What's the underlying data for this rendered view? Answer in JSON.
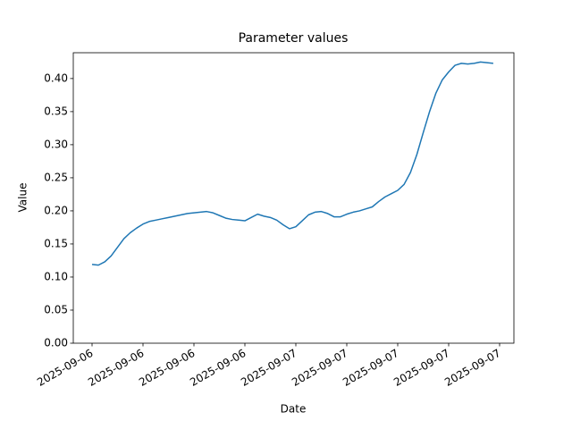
{
  "chart_data": {
    "type": "line",
    "title": "Parameter values",
    "x_label": "Date",
    "y_label": "Value",
    "categories": [
      "2025-09-06",
      null,
      null,
      null,
      null,
      null,
      null,
      null,
      "2025-09-06",
      null,
      null,
      null,
      null,
      null,
      null,
      null,
      "2025-09-06",
      null,
      null,
      null,
      null,
      null,
      null,
      null,
      "2025-09-06",
      null,
      null,
      null,
      null,
      null,
      null,
      null,
      "2025-09-07",
      null,
      null,
      null,
      null,
      null,
      null,
      null,
      "2025-09-07",
      null,
      null,
      null,
      null,
      null,
      null,
      null,
      "2025-09-07",
      null,
      null,
      null,
      null,
      null,
      null,
      null,
      "2025-09-07",
      null,
      null,
      null,
      null,
      null,
      null,
      null,
      "2025-09-07"
    ],
    "values": [
      0.119,
      0.118,
      0.123,
      0.132,
      0.145,
      0.158,
      0.167,
      0.174,
      0.18,
      0.184,
      0.186,
      0.188,
      0.19,
      0.192,
      0.194,
      0.196,
      0.197,
      0.198,
      0.199,
      0.197,
      0.193,
      0.189,
      0.187,
      0.186,
      0.185,
      0.19,
      0.195,
      0.192,
      0.19,
      0.186,
      0.179,
      0.173,
      0.176,
      0.185,
      0.194,
      0.198,
      0.199,
      0.196,
      0.191,
      0.191,
      0.195,
      0.198,
      0.2,
      0.203,
      0.206,
      0.214,
      0.221,
      0.226,
      0.231,
      0.24,
      0.258,
      0.285,
      0.318,
      0.35,
      0.378,
      0.398,
      0.41,
      0.42,
      0.423,
      0.422,
      0.423,
      0.425,
      0.424,
      0.423,
      null
    ],
    "color": "#1f77b4",
    "ylim": [
      0,
      0.439
    ],
    "yticks": [
      {
        "value": 0,
        "label": "0.00"
      },
      {
        "value": 0.05,
        "label": "0.05"
      },
      {
        "value": 0.1,
        "label": "0.10"
      },
      {
        "value": 0.15,
        "label": "0.15"
      },
      {
        "value": 0.2,
        "label": "0.20"
      },
      {
        "value": 0.25,
        "label": "0.25"
      },
      {
        "value": 0.3,
        "label": "0.30"
      },
      {
        "value": 0.35,
        "label": "0.35"
      },
      {
        "value": 0.4,
        "label": "0.40"
      }
    ],
    "grid": false
  }
}
